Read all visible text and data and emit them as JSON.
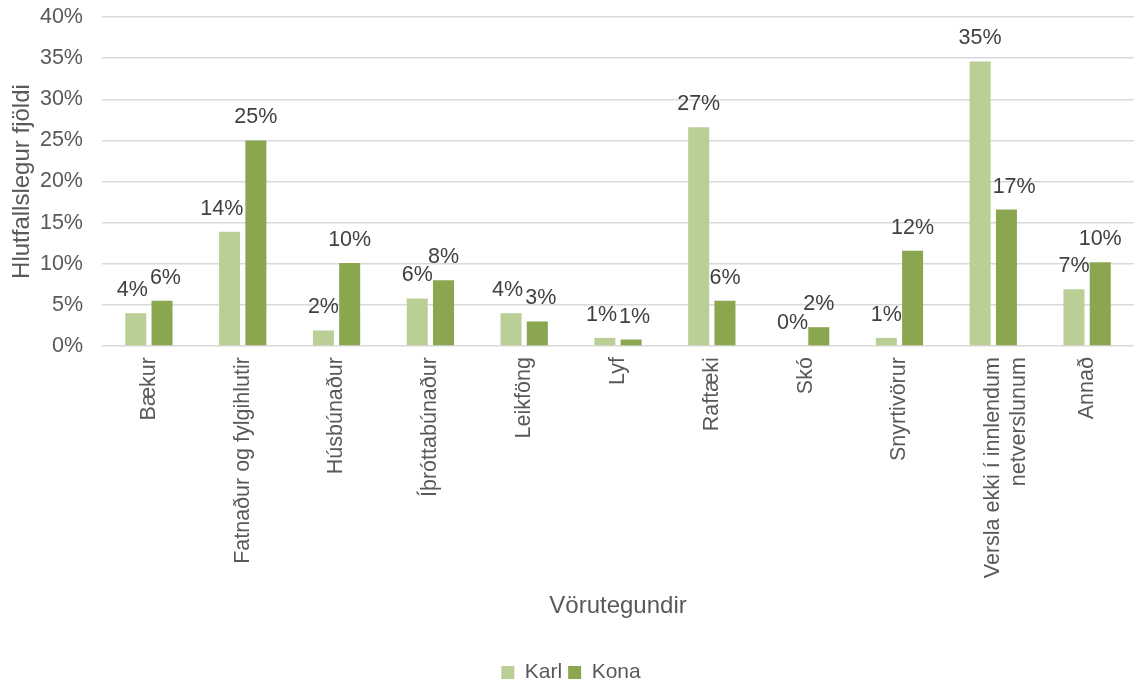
{
  "chart_data": {
    "type": "bar",
    "xlabel": "Vörutegundir",
    "ylabel": "Hlutfallslegur fjöldi",
    "categories": [
      "Bækur",
      "Fatnaður og fylgihlutir",
      "Húsbúnaður",
      "Íþróttabúnaður",
      "Leikföng",
      "Lyf",
      "Raftæki",
      "Skó",
      "Snyrtivörur",
      "Versla ekki í innlendum netverslunum",
      "Annað"
    ],
    "series": [
      {
        "name": "Karl",
        "color": "#bacf96",
        "values": [
          4.0,
          13.9,
          1.9,
          5.8,
          4.0,
          1.0,
          26.6,
          0,
          1.0,
          34.6,
          6.9
        ],
        "value_labels": [
          "4%",
          "14%",
          "2%",
          "6%",
          "4%",
          "1%",
          "27%",
          "0%",
          "1%",
          "35%",
          "7%"
        ]
      },
      {
        "name": "Kona",
        "color": "#8aa64e",
        "values": [
          5.5,
          25.0,
          10.1,
          8.0,
          3.0,
          0.8,
          5.5,
          2.3,
          11.6,
          16.6,
          10.2
        ],
        "value_labels": [
          "6%",
          "25%",
          "10%",
          "8%",
          "3%",
          "1%",
          "6%",
          "2%",
          "12%",
          "17%",
          "10%"
        ]
      }
    ],
    "ylim": [
      0,
      40
    ],
    "yticks": [
      {
        "value": 0,
        "label": "0%"
      },
      {
        "value": 5,
        "label": "5%"
      },
      {
        "value": 10,
        "label": "10%"
      },
      {
        "value": 15,
        "label": "15%"
      },
      {
        "value": 20,
        "label": "20%"
      },
      {
        "value": 25,
        "label": "25%"
      },
      {
        "value": 30,
        "label": "30%"
      },
      {
        "value": 35,
        "label": "35%"
      },
      {
        "value": 40,
        "label": "40%"
      }
    ],
    "grid": "y",
    "legend": "bottom"
  }
}
